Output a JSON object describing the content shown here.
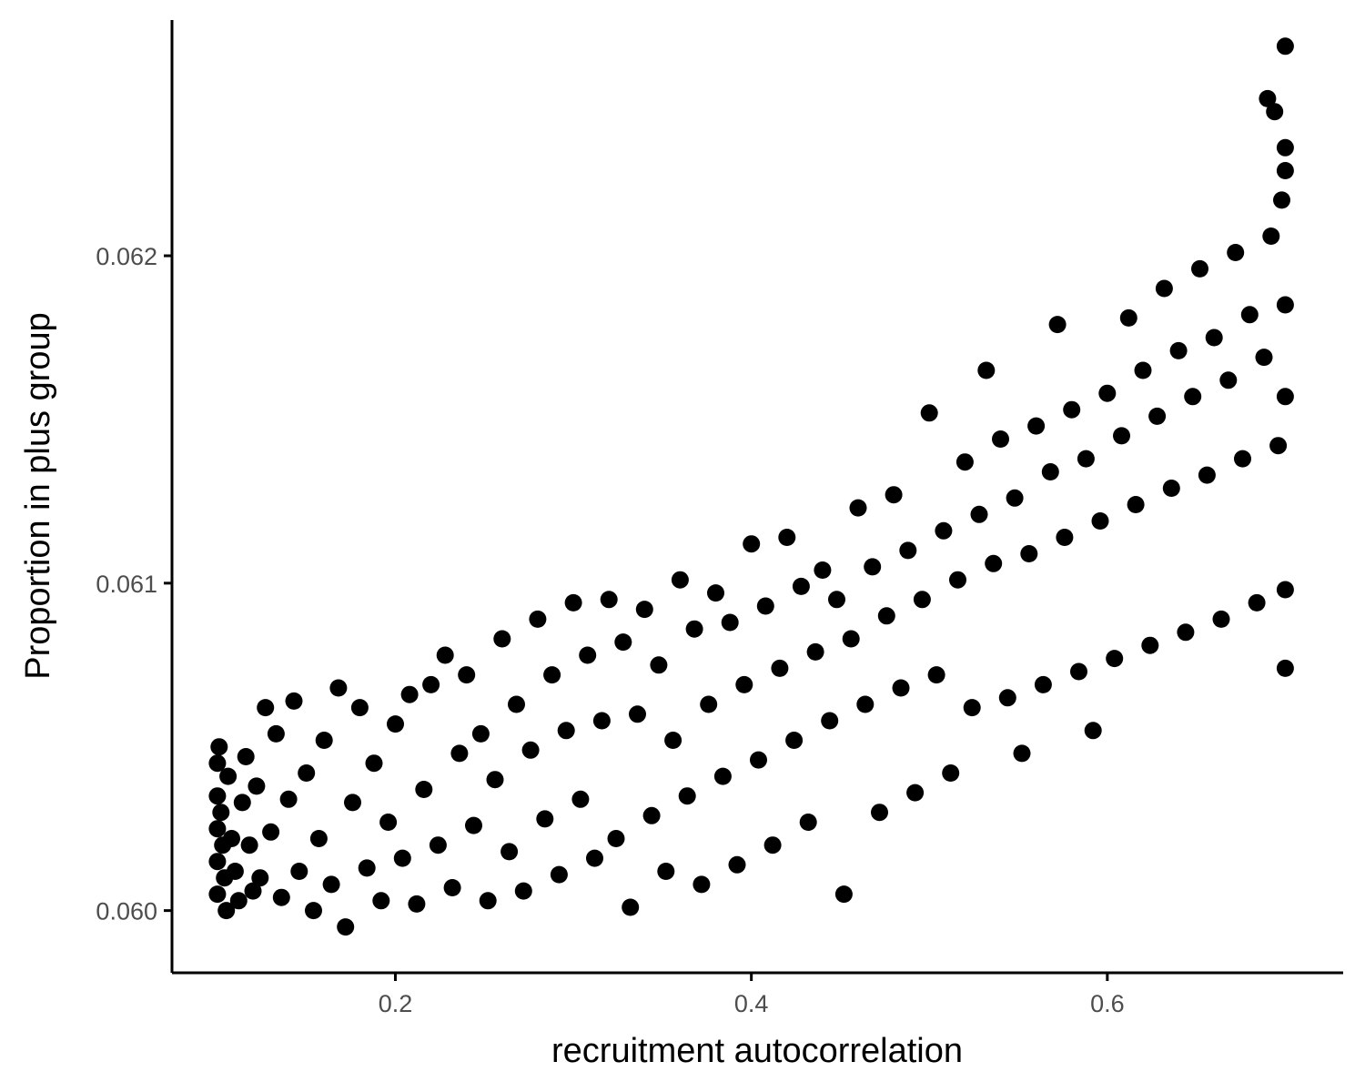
{
  "chart_data": {
    "type": "scatter",
    "title": "",
    "xlabel": "recruitment autocorrelation",
    "ylabel": "Proportion in plus group",
    "xlim": [
      0.0745,
      0.7325
    ],
    "ylim": [
      0.05981,
      0.06272
    ],
    "x_ticks": [
      0.2,
      0.4,
      0.6
    ],
    "x_tick_labels": [
      "0.2",
      "0.4",
      "0.6"
    ],
    "y_ticks": [
      0.06,
      0.061,
      0.062
    ],
    "y_tick_labels": [
      "0.060",
      "0.061",
      "0.062"
    ],
    "grid": false,
    "legend": "none",
    "point_color": "#000000",
    "series": [
      {
        "points": [
          [
            0.1,
            0.06005
          ],
          [
            0.1,
            0.06015
          ],
          [
            0.1,
            0.06025
          ],
          [
            0.1,
            0.06035
          ],
          [
            0.1,
            0.06045
          ],
          [
            0.101,
            0.0605
          ],
          [
            0.102,
            0.0603
          ],
          [
            0.103,
            0.0602
          ],
          [
            0.104,
            0.0601
          ],
          [
            0.105,
            0.06
          ],
          [
            0.106,
            0.06041
          ],
          [
            0.108,
            0.06022
          ],
          [
            0.11,
            0.06012
          ],
          [
            0.112,
            0.06003
          ],
          [
            0.114,
            0.06033
          ],
          [
            0.116,
            0.06047
          ],
          [
            0.118,
            0.0602
          ],
          [
            0.12,
            0.06006
          ],
          [
            0.122,
            0.06038
          ],
          [
            0.124,
            0.0601
          ],
          [
            0.127,
            0.06062
          ],
          [
            0.13,
            0.06024
          ],
          [
            0.133,
            0.06054
          ],
          [
            0.136,
            0.06004
          ],
          [
            0.14,
            0.06034
          ],
          [
            0.143,
            0.06064
          ],
          [
            0.146,
            0.06012
          ],
          [
            0.15,
            0.06042
          ],
          [
            0.154,
            0.06
          ],
          [
            0.157,
            0.06022
          ],
          [
            0.16,
            0.06052
          ],
          [
            0.164,
            0.06008
          ],
          [
            0.168,
            0.06068
          ],
          [
            0.172,
            0.05995
          ],
          [
            0.176,
            0.06033
          ],
          [
            0.18,
            0.06062
          ],
          [
            0.184,
            0.06013
          ],
          [
            0.188,
            0.06045
          ],
          [
            0.192,
            0.06003
          ],
          [
            0.196,
            0.06027
          ],
          [
            0.2,
            0.06057
          ],
          [
            0.204,
            0.06016
          ],
          [
            0.208,
            0.06066
          ],
          [
            0.212,
            0.06002
          ],
          [
            0.216,
            0.06037
          ],
          [
            0.22,
            0.06069
          ],
          [
            0.224,
            0.0602
          ],
          [
            0.228,
            0.06078
          ],
          [
            0.232,
            0.06007
          ],
          [
            0.236,
            0.06048
          ],
          [
            0.24,
            0.06072
          ],
          [
            0.244,
            0.06026
          ],
          [
            0.248,
            0.06054
          ],
          [
            0.252,
            0.06003
          ],
          [
            0.256,
            0.0604
          ],
          [
            0.26,
            0.06083
          ],
          [
            0.264,
            0.06018
          ],
          [
            0.268,
            0.06063
          ],
          [
            0.272,
            0.06006
          ],
          [
            0.276,
            0.06049
          ],
          [
            0.28,
            0.06089
          ],
          [
            0.284,
            0.06028
          ],
          [
            0.288,
            0.06072
          ],
          [
            0.292,
            0.06011
          ],
          [
            0.296,
            0.06055
          ],
          [
            0.3,
            0.06094
          ],
          [
            0.304,
            0.06034
          ],
          [
            0.308,
            0.06078
          ],
          [
            0.312,
            0.06016
          ],
          [
            0.316,
            0.06058
          ],
          [
            0.32,
            0.06095
          ],
          [
            0.324,
            0.06022
          ],
          [
            0.328,
            0.06082
          ],
          [
            0.332,
            0.06001
          ],
          [
            0.336,
            0.0606
          ],
          [
            0.34,
            0.06092
          ],
          [
            0.344,
            0.06029
          ],
          [
            0.348,
            0.06075
          ],
          [
            0.352,
            0.06012
          ],
          [
            0.356,
            0.06052
          ],
          [
            0.36,
            0.06101
          ],
          [
            0.364,
            0.06035
          ],
          [
            0.368,
            0.06086
          ],
          [
            0.372,
            0.06008
          ],
          [
            0.376,
            0.06063
          ],
          [
            0.38,
            0.06097
          ],
          [
            0.384,
            0.06041
          ],
          [
            0.388,
            0.06088
          ],
          [
            0.392,
            0.06014
          ],
          [
            0.396,
            0.06069
          ],
          [
            0.4,
            0.06112
          ],
          [
            0.404,
            0.06046
          ],
          [
            0.408,
            0.06093
          ],
          [
            0.412,
            0.0602
          ],
          [
            0.416,
            0.06074
          ],
          [
            0.42,
            0.06114
          ],
          [
            0.424,
            0.06052
          ],
          [
            0.428,
            0.06099
          ],
          [
            0.432,
            0.06027
          ],
          [
            0.436,
            0.06079
          ],
          [
            0.44,
            0.06104
          ],
          [
            0.444,
            0.06058
          ],
          [
            0.448,
            0.06095
          ],
          [
            0.452,
            0.06005
          ],
          [
            0.456,
            0.06083
          ],
          [
            0.46,
            0.06123
          ],
          [
            0.464,
            0.06063
          ],
          [
            0.468,
            0.06105
          ],
          [
            0.472,
            0.0603
          ],
          [
            0.476,
            0.0609
          ],
          [
            0.48,
            0.06127
          ],
          [
            0.484,
            0.06068
          ],
          [
            0.488,
            0.0611
          ],
          [
            0.492,
            0.06036
          ],
          [
            0.496,
            0.06095
          ],
          [
            0.5,
            0.06152
          ],
          [
            0.504,
            0.06072
          ],
          [
            0.508,
            0.06116
          ],
          [
            0.512,
            0.06042
          ],
          [
            0.516,
            0.06101
          ],
          [
            0.52,
            0.06137
          ],
          [
            0.524,
            0.06062
          ],
          [
            0.528,
            0.06121
          ],
          [
            0.532,
            0.06165
          ],
          [
            0.536,
            0.06106
          ],
          [
            0.54,
            0.06144
          ],
          [
            0.544,
            0.06065
          ],
          [
            0.548,
            0.06126
          ],
          [
            0.552,
            0.06048
          ],
          [
            0.556,
            0.06109
          ],
          [
            0.56,
            0.06148
          ],
          [
            0.564,
            0.06069
          ],
          [
            0.568,
            0.06134
          ],
          [
            0.572,
            0.06179
          ],
          [
            0.576,
            0.06114
          ],
          [
            0.58,
            0.06153
          ],
          [
            0.584,
            0.06073
          ],
          [
            0.588,
            0.06138
          ],
          [
            0.592,
            0.06055
          ],
          [
            0.596,
            0.06119
          ],
          [
            0.6,
            0.06158
          ],
          [
            0.604,
            0.06077
          ],
          [
            0.608,
            0.06145
          ],
          [
            0.612,
            0.06181
          ],
          [
            0.616,
            0.06124
          ],
          [
            0.62,
            0.06165
          ],
          [
            0.624,
            0.06081
          ],
          [
            0.628,
            0.06151
          ],
          [
            0.632,
            0.0619
          ],
          [
            0.636,
            0.06129
          ],
          [
            0.64,
            0.06171
          ],
          [
            0.644,
            0.06085
          ],
          [
            0.648,
            0.06157
          ],
          [
            0.652,
            0.06196
          ],
          [
            0.656,
            0.06133
          ],
          [
            0.66,
            0.06175
          ],
          [
            0.664,
            0.06089
          ],
          [
            0.668,
            0.06162
          ],
          [
            0.672,
            0.06201
          ],
          [
            0.676,
            0.06138
          ],
          [
            0.68,
            0.06182
          ],
          [
            0.684,
            0.06094
          ],
          [
            0.688,
            0.06169
          ],
          [
            0.692,
            0.06206
          ],
          [
            0.696,
            0.06142
          ],
          [
            0.7,
            0.06185
          ],
          [
            0.7,
            0.06264
          ],
          [
            0.7,
            0.06226
          ],
          [
            0.7,
            0.06233
          ],
          [
            0.7,
            0.06157
          ],
          [
            0.7,
            0.06098
          ],
          [
            0.7,
            0.06074
          ],
          [
            0.698,
            0.06217
          ],
          [
            0.694,
            0.06244
          ],
          [
            0.69,
            0.06248
          ]
        ]
      }
    ]
  }
}
